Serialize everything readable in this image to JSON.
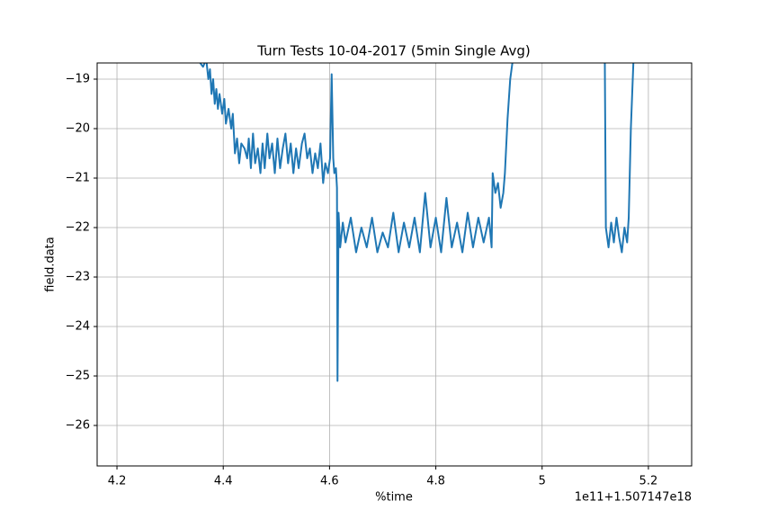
{
  "chart_data": {
    "type": "line",
    "title": "Turn Tests 10-04-2017 (5min Single Avg)",
    "x_label": "%time",
    "y_label": "field.data",
    "x_offset_label": "1e11+1.507147e18",
    "grid": true,
    "xlim": [
      4.1627,
      5.2814
    ],
    "xticks": [
      4.2,
      4.4,
      4.6,
      4.8,
      5.0,
      5.2
    ],
    "ylim": [
      -26.818,
      -18.673
    ],
    "yticks": [
      {
        "value": -19,
        "label": "−19"
      },
      {
        "value": -20,
        "label": "−20"
      },
      {
        "value": -21,
        "label": "−21"
      },
      {
        "value": -22,
        "label": "−22"
      },
      {
        "value": -23,
        "label": "−23"
      },
      {
        "value": -24,
        "label": "−24"
      },
      {
        "value": -25,
        "label": "−25"
      },
      {
        "value": -26,
        "label": "−26"
      }
    ],
    "x": [
      4.355,
      4.362,
      4.368,
      4.372,
      4.375,
      4.378,
      4.381,
      4.384,
      4.387,
      4.39,
      4.393,
      4.398,
      4.402,
      4.405,
      4.41,
      4.415,
      4.418,
      4.422,
      4.426,
      4.43,
      4.434,
      4.44,
      4.445,
      4.448,
      4.452,
      4.456,
      4.46,
      4.465,
      4.47,
      4.474,
      4.478,
      4.483,
      4.487,
      4.492,
      4.497,
      4.502,
      4.507,
      4.512,
      4.517,
      4.522,
      4.527,
      4.532,
      4.537,
      4.542,
      4.548,
      4.553,
      4.558,
      4.563,
      4.568,
      4.573,
      4.578,
      4.583,
      4.588,
      4.592,
      4.597,
      4.601,
      4.604,
      4.607,
      4.609,
      4.612,
      4.614,
      4.615,
      4.617,
      4.62,
      4.625,
      4.63,
      4.64,
      4.65,
      4.66,
      4.67,
      4.68,
      4.69,
      4.7,
      4.71,
      4.72,
      4.73,
      4.74,
      4.75,
      4.76,
      4.77,
      4.78,
      4.79,
      4.8,
      4.81,
      4.82,
      4.83,
      4.84,
      4.85,
      4.86,
      4.87,
      4.88,
      4.89,
      4.9,
      4.905,
      4.907,
      4.912,
      4.917,
      4.922,
      4.927,
      4.93,
      4.935,
      4.94,
      4.945,
      5.03,
      5.118,
      5.12,
      5.125,
      5.13,
      5.135,
      5.14,
      5.145,
      5.15,
      5.155,
      5.16,
      5.163,
      5.167,
      5.172
    ],
    "series": [
      {
        "name": "field.data",
        "color": "#1f77b4",
        "values": [
          -18.65,
          -18.75,
          -18.6,
          -19.0,
          -18.8,
          -19.3,
          -19.0,
          -19.5,
          -19.2,
          -19.6,
          -19.3,
          -19.7,
          -19.4,
          -19.9,
          -19.6,
          -20.0,
          -19.7,
          -20.5,
          -20.2,
          -20.7,
          -20.3,
          -20.4,
          -20.6,
          -20.2,
          -20.8,
          -20.1,
          -20.7,
          -20.4,
          -20.9,
          -20.3,
          -20.8,
          -20.1,
          -20.6,
          -20.3,
          -20.9,
          -20.2,
          -20.8,
          -20.4,
          -20.1,
          -20.7,
          -20.3,
          -20.9,
          -20.4,
          -20.8,
          -20.3,
          -20.1,
          -20.6,
          -20.4,
          -20.9,
          -20.5,
          -20.8,
          -20.3,
          -21.1,
          -20.7,
          -20.9,
          -20.6,
          -18.9,
          -20.6,
          -20.9,
          -20.8,
          -21.2,
          -25.1,
          -21.7,
          -22.4,
          -21.9,
          -22.3,
          -21.8,
          -22.5,
          -22.0,
          -22.4,
          -21.8,
          -22.5,
          -22.1,
          -22.4,
          -21.7,
          -22.5,
          -21.9,
          -22.4,
          -21.8,
          -22.5,
          -21.3,
          -22.4,
          -21.8,
          -22.5,
          -21.4,
          -22.4,
          -21.9,
          -22.5,
          -21.7,
          -22.4,
          -21.8,
          -22.3,
          -21.8,
          -22.4,
          -20.9,
          -21.3,
          -21.1,
          -21.6,
          -21.3,
          -20.9,
          -19.8,
          -19.0,
          -18.6,
          null,
          -18.6,
          -22.0,
          -22.4,
          -21.9,
          -22.3,
          -21.8,
          -22.2,
          -22.5,
          -22.0,
          -22.3,
          -21.8,
          -20.0,
          -18.6
        ]
      }
    ]
  }
}
